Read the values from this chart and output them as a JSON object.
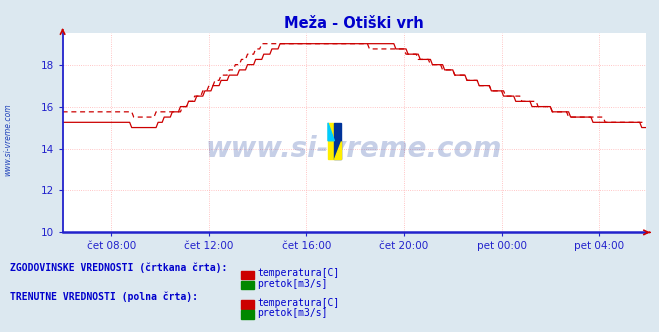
{
  "title": "Meža - Otiški vrh",
  "title_color": "#0000cc",
  "background_color": "#dce8f0",
  "plot_bg_color": "#ffffff",
  "grid_color_h": "#ffaaaa",
  "grid_color_v": "#ddaaaa",
  "axis_color": "#2222cc",
  "watermark_text": "www.si-vreme.com",
  "watermark_color": "#3355aa",
  "sidebar_text": "www.si-vreme.com",
  "sidebar_color": "#2244bb",
  "ylim": [
    10,
    19.5
  ],
  "yticks": [
    10,
    12,
    14,
    16,
    18
  ],
  "xlabel_color": "#2222cc",
  "xtick_labels": [
    "čet 08:00",
    "čet 12:00",
    "čet 16:00",
    "čet 20:00",
    "pet 00:00",
    "pet 04:00"
  ],
  "n_points": 288,
  "temp_current_color": "#cc0000",
  "temp_hist_color": "#cc0000",
  "pretok_current_color": "#008800",
  "pretok_hist_color": "#008800",
  "legend_hist_label1": "temperatura[C]",
  "legend_hist_label2": "pretok[m3/s]",
  "legend_curr_label1": "temperatura[C]",
  "legend_curr_label2": "pretok[m3/s]",
  "legend_hist_title": "ZGODOVINSKE VREDNOSTI (črtkana črta):",
  "legend_curr_title": "TRENUTNE VREDNOSTI (polna črta):",
  "legend_color": "#0000cc",
  "legend_title_color": "#0000cc"
}
